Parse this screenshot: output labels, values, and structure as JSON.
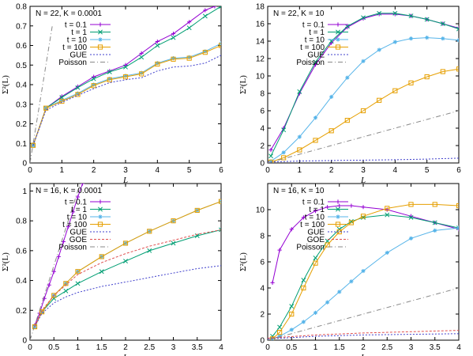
{
  "colors": {
    "purple": "#9400d3",
    "green": "#009e73",
    "blue": "#56b4e9",
    "orange": "#e69f00",
    "gue": "#4040cc",
    "goe": "#e05050",
    "poisson": "#888888"
  },
  "chart_data": [
    {
      "type": "line",
      "title": "N = 22, K = 0.0001",
      "xlabel": "L",
      "ylabel": "Σ²(L)",
      "xlim": [
        0,
        6
      ],
      "ylim": [
        0,
        0.8
      ],
      "xticks": [
        "0",
        "1",
        "2",
        "3",
        "4",
        "5",
        "6"
      ],
      "yticks": [
        "0",
        "0.1",
        "0.2",
        "0.3",
        "0.4",
        "0.5",
        "0.6",
        "0.7",
        "0.8"
      ],
      "legend_position": "top-left",
      "series": [
        {
          "name": "t = 0.1",
          "color": "#9400d3",
          "marker": "plus",
          "x": [
            0.1,
            0.5,
            1,
            1.5,
            2,
            2.5,
            3,
            3.5,
            4,
            4.5,
            5,
            5.5,
            5.8
          ],
          "y": [
            0.09,
            0.28,
            0.34,
            0.39,
            0.44,
            0.47,
            0.5,
            0.56,
            0.62,
            0.66,
            0.72,
            0.78,
            0.8
          ]
        },
        {
          "name": "t = 1",
          "color": "#009e73",
          "marker": "cross",
          "x": [
            0.1,
            0.5,
            1,
            1.5,
            2,
            2.5,
            3,
            3.5,
            4,
            4.5,
            5,
            5.5,
            6
          ],
          "y": [
            0.09,
            0.28,
            0.335,
            0.385,
            0.43,
            0.465,
            0.49,
            0.54,
            0.6,
            0.64,
            0.69,
            0.75,
            0.8
          ]
        },
        {
          "name": "t = 10",
          "color": "#56b4e9",
          "marker": "star",
          "x": [
            0.1,
            0.5,
            1,
            1.5,
            2,
            2.5,
            3,
            3.5,
            4,
            4.5,
            5,
            5.5,
            6
          ],
          "y": [
            0.09,
            0.28,
            0.32,
            0.355,
            0.4,
            0.43,
            0.445,
            0.46,
            0.51,
            0.535,
            0.54,
            0.57,
            0.61
          ]
        },
        {
          "name": "t = 100",
          "color": "#e69f00",
          "marker": "square",
          "x": [
            0.1,
            0.5,
            1,
            1.5,
            2,
            2.5,
            3,
            3.5,
            4,
            4.5,
            5,
            5.5,
            6
          ],
          "y": [
            0.09,
            0.28,
            0.315,
            0.35,
            0.395,
            0.425,
            0.44,
            0.455,
            0.505,
            0.53,
            0.535,
            0.565,
            0.6
          ]
        },
        {
          "name": "GUE",
          "color": "#4040cc",
          "marker": "none",
          "dash": "2,2",
          "x": [
            0.1,
            0.5,
            1,
            1.5,
            2,
            2.5,
            3,
            3.5,
            4,
            4.5,
            5,
            5.5,
            6
          ],
          "y": [
            0.09,
            0.27,
            0.31,
            0.345,
            0.38,
            0.41,
            0.425,
            0.435,
            0.47,
            0.49,
            0.495,
            0.51,
            0.55
          ]
        },
        {
          "name": "Poisson",
          "color": "#888888",
          "marker": "none",
          "dash": "6,3,1,3",
          "x": [
            0,
            0.7
          ],
          "y": [
            0,
            0.7
          ]
        }
      ]
    },
    {
      "type": "line",
      "title": "N = 22, K = 10",
      "xlabel": "L",
      "ylabel": "Σ²(L)",
      "xlim": [
        0,
        6
      ],
      "ylim": [
        0,
        18
      ],
      "xticks": [
        "0",
        "1",
        "2",
        "3",
        "4",
        "5",
        "6"
      ],
      "yticks": [
        "0",
        "2",
        "4",
        "6",
        "8",
        "10",
        "12",
        "14",
        "16",
        "18"
      ],
      "legend_position": "top-left",
      "series": [
        {
          "name": "t = 0.1",
          "color": "#9400d3",
          "marker": "plus",
          "x": [
            0.1,
            0.5,
            1,
            1.5,
            2,
            2.5,
            3,
            3.5,
            4,
            4.5,
            5,
            5.5,
            6
          ],
          "y": [
            1.5,
            4.0,
            8.0,
            11.3,
            13.8,
            15.6,
            16.6,
            17.1,
            17.1,
            16.9,
            16.5,
            16.0,
            15.5
          ]
        },
        {
          "name": "t = 1",
          "color": "#009e73",
          "marker": "cross",
          "x": [
            0.1,
            0.5,
            1,
            1.5,
            2,
            2.5,
            3,
            3.5,
            4,
            4.5,
            5,
            5.5,
            6
          ],
          "y": [
            0.8,
            3.8,
            8.2,
            11.6,
            14.0,
            15.7,
            16.7,
            17.2,
            17.2,
            16.9,
            16.5,
            16.0,
            15.4
          ]
        },
        {
          "name": "t = 10",
          "color": "#56b4e9",
          "marker": "star",
          "x": [
            0.1,
            0.5,
            1,
            1.5,
            2,
            2.5,
            3,
            3.5,
            4,
            4.5,
            5,
            5.5,
            6
          ],
          "y": [
            0.2,
            1.2,
            3.0,
            5.2,
            7.6,
            9.8,
            11.7,
            13.0,
            13.9,
            14.3,
            14.4,
            14.3,
            14.1
          ]
        },
        {
          "name": "t = 100",
          "color": "#e69f00",
          "marker": "square",
          "x": [
            0.1,
            0.5,
            1,
            1.5,
            2,
            2.5,
            3,
            3.5,
            4,
            4.5,
            5,
            5.5,
            6
          ],
          "y": [
            0.1,
            0.6,
            1.5,
            2.6,
            3.7,
            4.9,
            6.0,
            7.2,
            8.3,
            9.2,
            9.9,
            10.5,
            10.8
          ]
        },
        {
          "name": "GUE",
          "color": "#4040cc",
          "marker": "none",
          "dash": "2,2",
          "x": [
            0,
            1,
            2,
            3,
            4,
            5,
            6
          ],
          "y": [
            0.1,
            0.22,
            0.28,
            0.33,
            0.37,
            0.45,
            0.55
          ]
        },
        {
          "name": "Poisson",
          "color": "#888888",
          "marker": "none",
          "dash": "6,3,1,3",
          "x": [
            0,
            6
          ],
          "y": [
            0,
            6
          ]
        }
      ]
    },
    {
      "type": "line",
      "title": "N = 16, K = 0.0001",
      "xlabel": "L",
      "ylabel": "Σ²(L)",
      "xlim": [
        0,
        4
      ],
      "ylim": [
        0,
        1.05
      ],
      "xticks": [
        "0",
        "0.5",
        "1",
        "1.5",
        "2",
        "2.5",
        "3",
        "3.5",
        "4"
      ],
      "yticks": [
        "0",
        "0.2",
        "0.4",
        "0.6",
        "0.8",
        "1"
      ],
      "legend_position": "top-left",
      "series": [
        {
          "name": "t = 0.1",
          "color": "#9400d3",
          "marker": "plus",
          "x": [
            0.1,
            0.2,
            0.3,
            0.4,
            0.5,
            0.6,
            0.7,
            0.8,
            0.9,
            1.0,
            1.1
          ],
          "y": [
            0.1,
            0.18,
            0.28,
            0.37,
            0.46,
            0.56,
            0.66,
            0.76,
            0.86,
            0.96,
            1.05
          ]
        },
        {
          "name": "t = 1",
          "color": "#009e73",
          "marker": "cross",
          "x": [
            0.1,
            0.25,
            0.5,
            0.75,
            1,
            1.5,
            2,
            2.5,
            3,
            3.5,
            4
          ],
          "y": [
            0.09,
            0.19,
            0.28,
            0.33,
            0.38,
            0.46,
            0.53,
            0.6,
            0.65,
            0.7,
            0.74
          ]
        },
        {
          "name": "t = 10",
          "color": "#56b4e9",
          "marker": "star",
          "x": [
            0.1,
            0.25,
            0.5,
            0.75,
            1,
            1.5,
            2,
            2.5,
            3,
            3.5,
            4
          ],
          "y": [
            0.09,
            0.19,
            0.3,
            0.38,
            0.46,
            0.56,
            0.65,
            0.73,
            0.8,
            0.87,
            0.93
          ]
        },
        {
          "name": "t = 100",
          "color": "#e69f00",
          "marker": "square",
          "x": [
            0.1,
            0.25,
            0.5,
            0.75,
            1,
            1.5,
            2,
            2.5,
            3,
            3.5,
            4
          ],
          "y": [
            0.09,
            0.19,
            0.3,
            0.38,
            0.46,
            0.56,
            0.65,
            0.73,
            0.8,
            0.87,
            0.93
          ]
        },
        {
          "name": "GUE",
          "color": "#4040cc",
          "marker": "none",
          "dash": "2,2",
          "x": [
            0.1,
            0.25,
            0.5,
            0.75,
            1,
            1.5,
            2,
            2.5,
            3,
            3.5,
            4
          ],
          "y": [
            0.09,
            0.18,
            0.25,
            0.29,
            0.32,
            0.36,
            0.39,
            0.42,
            0.45,
            0.48,
            0.5
          ]
        },
        {
          "name": "GOE",
          "color": "#e05050",
          "marker": "none",
          "dash": "3,2",
          "x": [
            0.1,
            0.25,
            0.5,
            0.75,
            1,
            1.5,
            2,
            2.5,
            3,
            3.5,
            4
          ],
          "y": [
            0.09,
            0.2,
            0.3,
            0.37,
            0.44,
            0.52,
            0.58,
            0.63,
            0.67,
            0.71,
            0.74
          ]
        },
        {
          "name": "Poisson",
          "color": "#888888",
          "marker": "none",
          "dash": "6,3,1,3",
          "x": [
            0,
            1.05
          ],
          "y": [
            0,
            1.05
          ]
        }
      ]
    },
    {
      "type": "line",
      "title": "N = 16, K = 10",
      "xlabel": "L",
      "ylabel": "Σ²(L)",
      "xlim": [
        0,
        4
      ],
      "ylim": [
        0,
        12
      ],
      "xticks": [
        "0",
        "0.5",
        "1",
        "1.5",
        "2",
        "2.5",
        "3",
        "3.5",
        "4"
      ],
      "yticks": [
        "0",
        "2",
        "4",
        "6",
        "8",
        "10"
      ],
      "legend_position": "top-left",
      "series": [
        {
          "name": "t = 0.1",
          "color": "#9400d3",
          "marker": "plus",
          "x": [
            0.1,
            0.25,
            0.5,
            0.75,
            1,
            1.25,
            1.5,
            1.75,
            2,
            2.5,
            3,
            3.5,
            4
          ],
          "y": [
            4.4,
            6.9,
            8.5,
            9.4,
            9.9,
            10.2,
            10.3,
            10.3,
            10.2,
            10.0,
            9.5,
            9.0,
            8.5
          ]
        },
        {
          "name": "t = 1",
          "color": "#009e73",
          "marker": "cross",
          "x": [
            0.1,
            0.25,
            0.5,
            0.75,
            1,
            1.25,
            1.5,
            1.75,
            2,
            2.5,
            3,
            3.5,
            4
          ],
          "y": [
            0.3,
            1.0,
            2.6,
            4.6,
            6.3,
            7.6,
            8.5,
            9.1,
            9.4,
            9.6,
            9.4,
            9.0,
            8.6
          ]
        },
        {
          "name": "t = 10",
          "color": "#56b4e9",
          "marker": "star",
          "x": [
            0.1,
            0.25,
            0.5,
            0.75,
            1,
            1.25,
            1.5,
            1.75,
            2,
            2.5,
            3,
            3.5,
            4
          ],
          "y": [
            0.1,
            0.3,
            0.8,
            1.4,
            2.1,
            2.9,
            3.7,
            4.5,
            5.3,
            6.7,
            7.8,
            8.4,
            8.6
          ]
        },
        {
          "name": "t = 100",
          "color": "#e69f00",
          "marker": "square",
          "x": [
            0.1,
            0.25,
            0.5,
            0.75,
            1,
            1.25,
            1.5,
            1.75,
            2,
            2.5,
            3,
            3.5,
            4
          ],
          "y": [
            0.1,
            0.6,
            2.0,
            4.0,
            5.9,
            7.3,
            8.3,
            9.0,
            9.5,
            10.1,
            10.4,
            10.4,
            10.3
          ]
        },
        {
          "name": "GUE",
          "color": "#4040cc",
          "marker": "none",
          "dash": "2,2",
          "x": [
            0,
            1,
            2,
            3,
            4
          ],
          "y": [
            0.1,
            0.3,
            0.4,
            0.45,
            0.5
          ]
        },
        {
          "name": "GOE",
          "color": "#e05050",
          "marker": "none",
          "dash": "3,2",
          "x": [
            0,
            1,
            2,
            3,
            4
          ],
          "y": [
            0.15,
            0.4,
            0.55,
            0.65,
            0.75
          ]
        },
        {
          "name": "Poisson",
          "color": "#888888",
          "marker": "none",
          "dash": "6,3,1,3",
          "x": [
            0,
            4
          ],
          "y": [
            0,
            4
          ]
        }
      ]
    }
  ]
}
